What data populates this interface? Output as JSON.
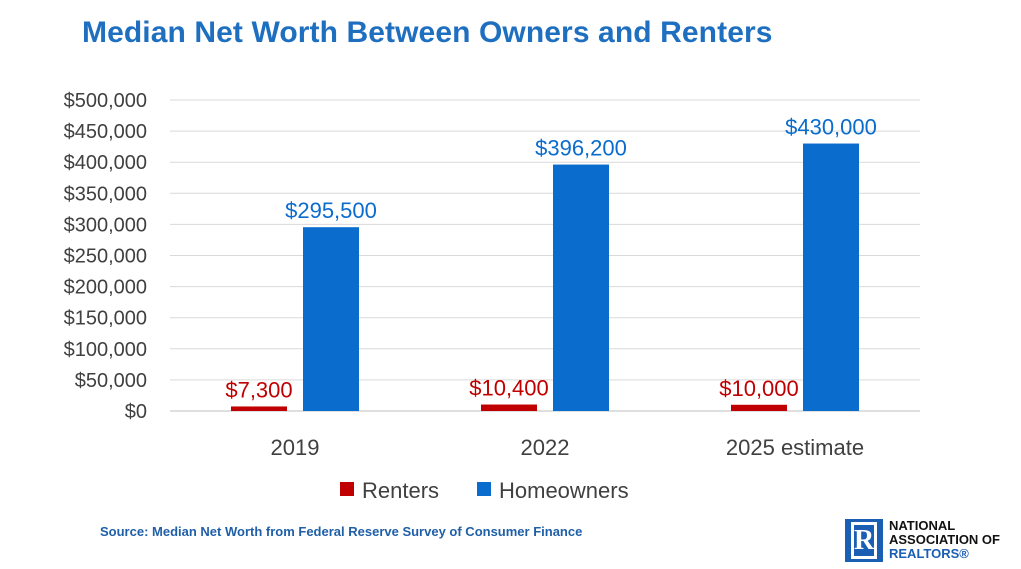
{
  "chart_data": {
    "type": "bar",
    "title": "Median Net Worth Between Owners and Renters",
    "categories": [
      "2019",
      "2022",
      "2025 estimate"
    ],
    "series": [
      {
        "name": "Renters",
        "color": "#c00000",
        "values": [
          7300,
          10400,
          10000
        ],
        "labels": [
          "$7,300",
          "$10,400",
          "$10,000"
        ]
      },
      {
        "name": "Homeowners",
        "color": "#0a6ccd",
        "values": [
          295500,
          396200,
          430000
        ],
        "labels": [
          "$295,500",
          "$396,200",
          "$430,000"
        ]
      }
    ],
    "ylim": [
      0,
      500000
    ],
    "yticks": [
      {
        "value": 0,
        "label": "$0"
      },
      {
        "value": 50000,
        "label": "$50,000"
      },
      {
        "value": 100000,
        "label": "$100,000"
      },
      {
        "value": 150000,
        "label": "$150,000"
      },
      {
        "value": 200000,
        "label": "$200,000"
      },
      {
        "value": 250000,
        "label": "$250,000"
      },
      {
        "value": 300000,
        "label": "$300,000"
      },
      {
        "value": 350000,
        "label": "$350,000"
      },
      {
        "value": 400000,
        "label": "$400,000"
      },
      {
        "value": 450000,
        "label": "$450,000"
      },
      {
        "value": 500000,
        "label": "$500,000"
      }
    ],
    "grid": true,
    "legend_position": "bottom"
  },
  "source": "Source: Median Net Worth from Federal Reserve Survey of Consumer Finance",
  "logo": {
    "line1": "NATIONAL",
    "line2": "ASSOCIATION OF",
    "line3": "REALTORS®",
    "mark": "R"
  }
}
